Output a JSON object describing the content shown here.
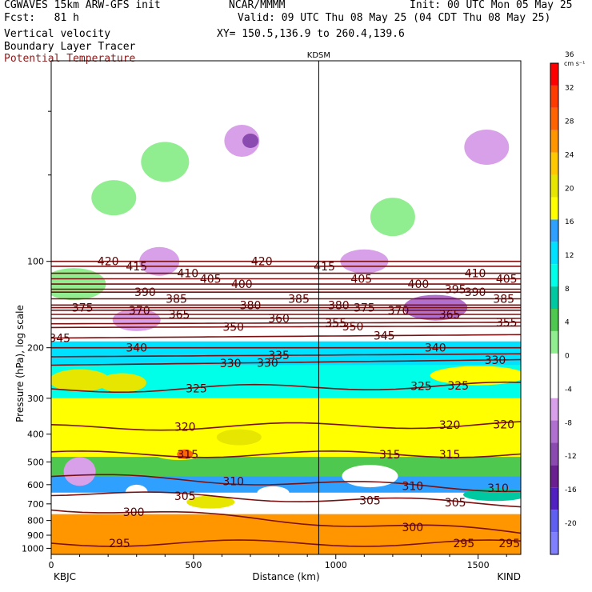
{
  "header": {
    "model": "CGWAVES 15km ARW-GFS init",
    "forecast": "Fcst:   81 h",
    "field1": "Vertical velocity",
    "field2": "Boundary Layer Tracer",
    "field3": "Potential Temperature",
    "org": "NCAR/MMMM",
    "init": "Init: 00 UTC Mon 05 May 25",
    "valid": "Valid: 09 UTC Thu 08 May 25 (04 CDT Thu 08 May 25)",
    "xy": "XY= 150.5,136.9 to 260.4,139.6",
    "field3_color": "#8b1a1a"
  },
  "chart_data": {
    "type": "heatmap",
    "title": "Vertical velocity",
    "xlabel": "Distance (km)",
    "ylabel": "Pressure (hPa), log scale",
    "x_range": [
      0,
      1650
    ],
    "y_range_hpa": [
      1050,
      20
    ],
    "y_scale": "log",
    "x_ticks": [
      0,
      500,
      1000,
      1500
    ],
    "y_ticks": [
      100,
      200,
      300,
      400,
      500,
      600,
      700,
      800,
      900,
      1000
    ],
    "station_left": "KBJC",
    "station_right": "KIND",
    "station_mid": "KDSM",
    "station_mid_km": 940,
    "colorbar": {
      "unit": "cm s⁻¹",
      "levels": [
        -20,
        -16,
        -12,
        -8,
        -4,
        0,
        4,
        8,
        12,
        16,
        20,
        24,
        28,
        32,
        36
      ],
      "colors": [
        "#8080ff",
        "#6060f0",
        "#5020c0",
        "#6a2090",
        "#8a4ab0",
        "#b070d0",
        "#d8a0e8",
        "#ffffff",
        "#ffffff",
        "#90ee90",
        "#4ec84e",
        "#00c8a0",
        "#00ffe8",
        "#00e0ff",
        "#30a0ff",
        "#ffff00",
        "#e6e600",
        "#ffc800",
        "#ff9600",
        "#ff6400",
        "#ff3c00",
        "#ff0000"
      ]
    },
    "theta_contours": [
      {
        "theta": 295,
        "p_left": 960,
        "p_right": 960,
        "label_km": [
          240,
          1450,
          1610
        ]
      },
      {
        "theta": 300,
        "p_left": 720,
        "p_right": 880,
        "label_km": [
          290,
          1270
        ]
      },
      {
        "theta": 305,
        "p_left": 640,
        "p_right": 700,
        "label_km": [
          470,
          1120,
          1420
        ]
      },
      {
        "theta": 310,
        "p_left": 560,
        "p_right": 620,
        "label_km": [
          640,
          1270,
          1570
        ]
      },
      {
        "theta": 315,
        "p_left": 470,
        "p_right": 470,
        "label_km": [
          480,
          1190,
          1400
        ]
      },
      {
        "theta": 320,
        "p_left": 380,
        "p_right": 370,
        "label_km": [
          470,
          1400,
          1590
        ]
      },
      {
        "theta": 325,
        "p_left": 280,
        "p_right": 270,
        "label_km": [
          510,
          1300,
          1430
        ]
      },
      {
        "theta": 330,
        "p_left": 230,
        "p_right": 220,
        "label_km": [
          630,
          760,
          1560
        ]
      },
      {
        "theta": 335,
        "p_left": 215,
        "p_right": 210,
        "label_km": [
          800
        ]
      },
      {
        "theta": 340,
        "p_left": 200,
        "p_right": 200,
        "label_km": [
          300,
          1350
        ]
      },
      {
        "theta": 345,
        "p_left": 185,
        "p_right": 180,
        "label_km": [
          30,
          1170
        ]
      },
      {
        "theta": 350,
        "p_left": 170,
        "p_right": 168,
        "label_km": [
          640,
          1060
        ]
      },
      {
        "theta": 355,
        "p_left": 165,
        "p_right": 163,
        "label_km": [
          1000,
          1600
        ]
      },
      {
        "theta": 360,
        "p_left": 158,
        "p_right": 158,
        "label_km": [
          800
        ]
      },
      {
        "theta": 365,
        "p_left": 153,
        "p_right": 153,
        "label_km": [
          450,
          1400
        ]
      },
      {
        "theta": 370,
        "p_left": 148,
        "p_right": 148,
        "label_km": [
          310,
          1220
        ]
      },
      {
        "theta": 375,
        "p_left": 145,
        "p_right": 145,
        "label_km": [
          110,
          1100
        ]
      },
      {
        "theta": 380,
        "p_left": 142,
        "p_right": 142,
        "label_km": [
          700,
          1010
        ]
      },
      {
        "theta": 385,
        "p_left": 135,
        "p_right": 135,
        "label_km": [
          440,
          870,
          1590
        ]
      },
      {
        "theta": 390,
        "p_left": 128,
        "p_right": 128,
        "label_km": [
          330,
          1490
        ]
      },
      {
        "theta": 395,
        "p_left": 125,
        "p_right": 125,
        "label_km": [
          1420
        ]
      },
      {
        "theta": 400,
        "p_left": 120,
        "p_right": 120,
        "label_km": [
          670,
          1290
        ]
      },
      {
        "theta": 405,
        "p_left": 115,
        "p_right": 115,
        "label_km": [
          560,
          1090,
          1600
        ]
      },
      {
        "theta": 410,
        "p_left": 110,
        "p_right": 110,
        "label_km": [
          480,
          1490
        ]
      },
      {
        "theta": 415,
        "p_left": 104,
        "p_right": 104,
        "label_km": [
          300,
          960
        ]
      },
      {
        "theta": 420,
        "p_left": 100,
        "p_right": 100,
        "label_km": [
          200,
          740
        ]
      }
    ]
  }
}
